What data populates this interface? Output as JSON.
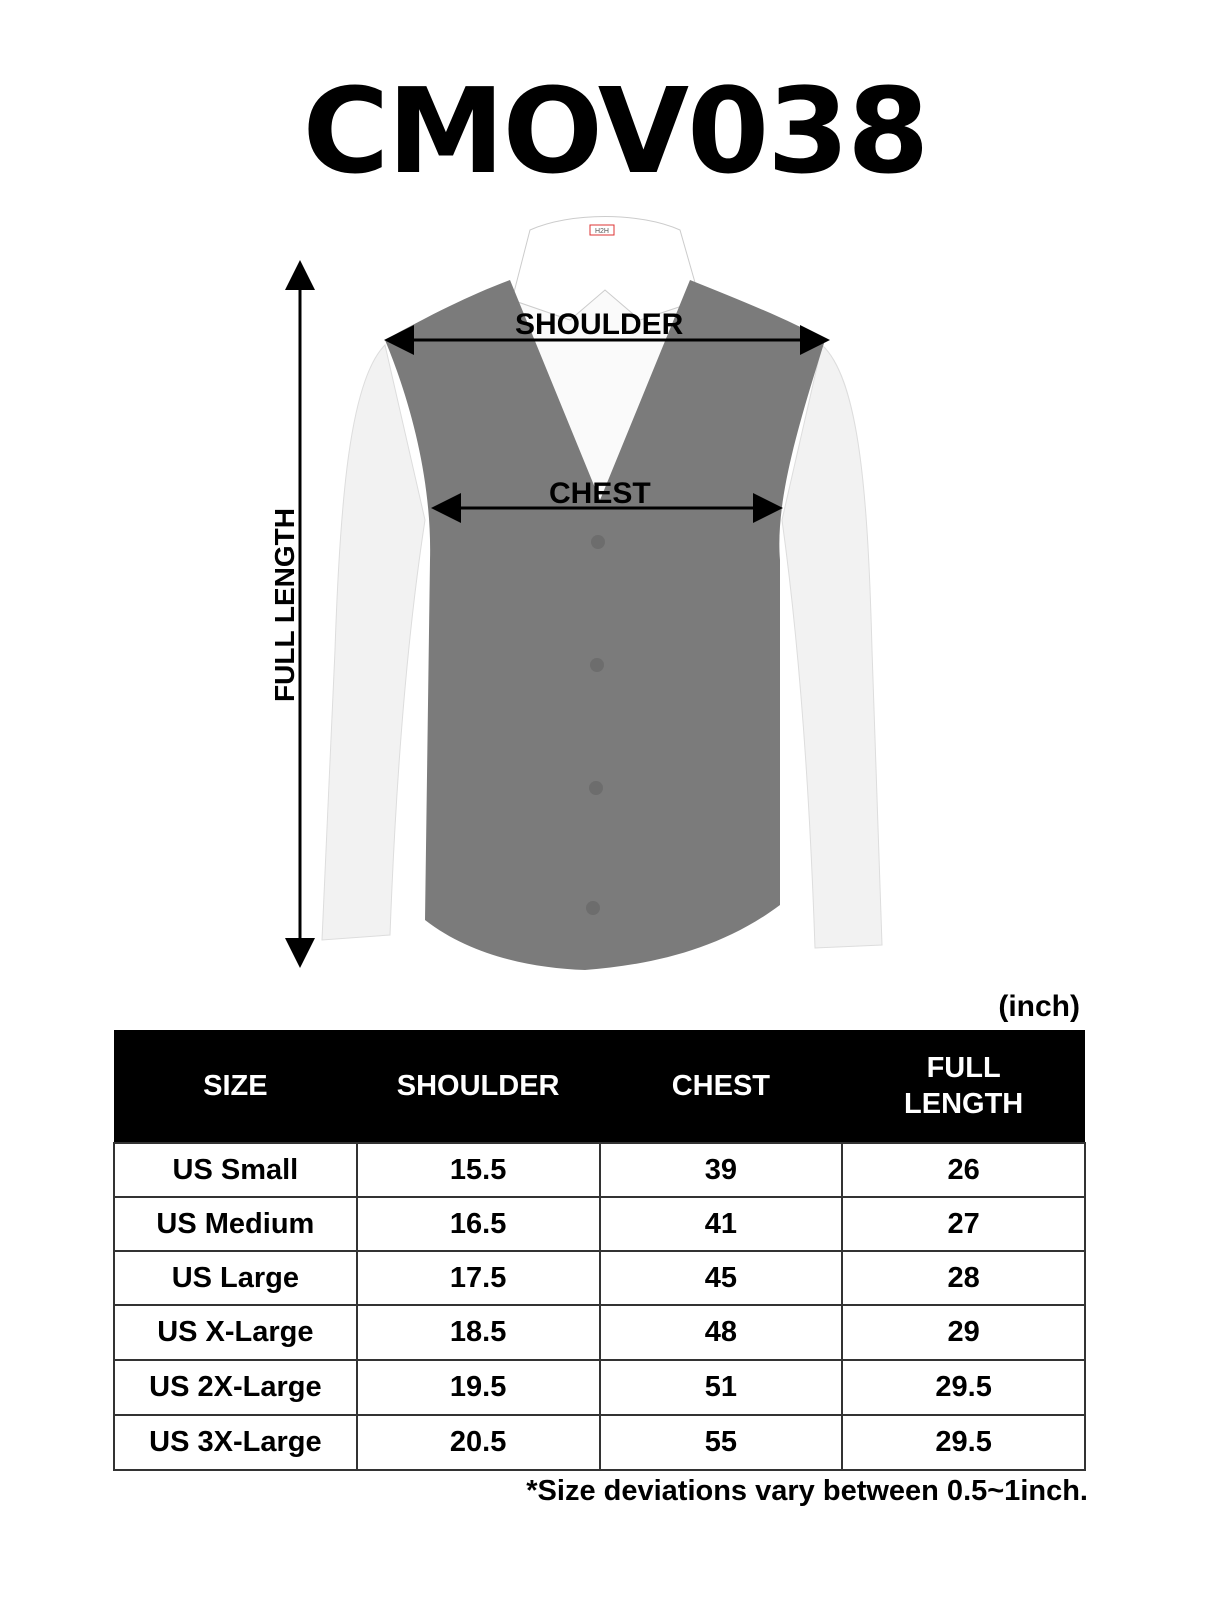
{
  "title": "CMOV038",
  "diagram": {
    "shoulder_label": "SHOULDER",
    "chest_label": "CHEST",
    "full_length_label": "FULL LENGTH",
    "brand_tag": "H2H",
    "vest_color": "#7b7b7b"
  },
  "unit": "(inch)",
  "table": {
    "headers": [
      "SIZE",
      "SHOULDER",
      "CHEST",
      "FULL LENGTH"
    ],
    "rows": [
      [
        "US Small",
        "15.5",
        "39",
        "26"
      ],
      [
        "US Medium",
        "16.5",
        "41",
        "27"
      ],
      [
        "US Large",
        "17.5",
        "45",
        "28"
      ],
      [
        "US X-Large",
        "18.5",
        "48",
        "29"
      ],
      [
        "US 2X-Large",
        "19.5",
        "51",
        "29.5"
      ],
      [
        "US 3X-Large",
        "20.5",
        "55",
        "29.5"
      ]
    ]
  },
  "note": "*Size deviations vary between 0.5~1inch."
}
